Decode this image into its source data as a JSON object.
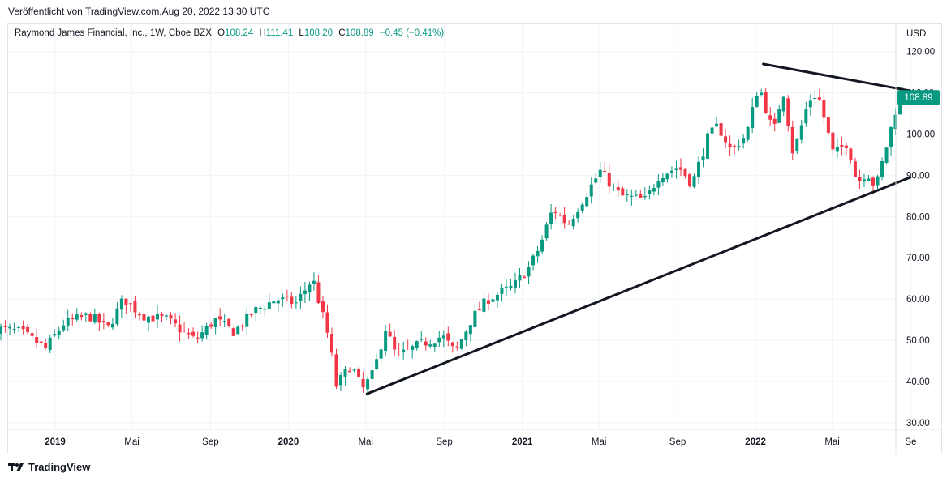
{
  "header": {
    "published": "Veröffentlicht von TradingView.com,Aug 20, 2022 13:30 UTC"
  },
  "legend": {
    "symbol": "Raymond James Financial, Inc., 1W, Cboe BZX",
    "o_label": "O",
    "o_value": "108.24",
    "h_label": "H",
    "h_value": "111.41",
    "l_label": "L",
    "l_value": "108.20",
    "c_label": "C",
    "c_value": "108.89",
    "change": "−0.45 (−0.41%)"
  },
  "footer": {
    "brand": "TradingView"
  },
  "colors": {
    "up": "#089981",
    "down": "#f23645",
    "trend": "#131722",
    "grid": "#f0f3fa",
    "price_tag": "#089981"
  },
  "chart_data": {
    "type": "candlestick",
    "currency": "USD",
    "interval": "1W",
    "ylim": [
      27,
      124
    ],
    "y_ticks": [
      "30.00",
      "40.00",
      "50.00",
      "60.00",
      "70.00",
      "80.00",
      "90.00",
      "100.00",
      "110.00",
      "120.00"
    ],
    "x_ticks": [
      "2019",
      "Mai",
      "Sep",
      "2020",
      "Mai",
      "Sep",
      "2021",
      "Mai",
      "Sep",
      "2022",
      "Mai",
      "Se"
    ],
    "x_tick_dates": [
      "2019-01-01",
      "2019-05-01",
      "2019-09-01",
      "2020-01-01",
      "2020-05-01",
      "2020-09-01",
      "2021-01-01",
      "2021-05-01",
      "2021-09-01",
      "2022-01-01",
      "2022-05-01",
      "2022-09-01"
    ],
    "last_price": "108.89",
    "trendlines": [
      {
        "name": "resistance",
        "from": [
          "2022-01-13",
          117
        ],
        "to": [
          "2022-08-31",
          110.5
        ]
      },
      {
        "name": "support",
        "from": [
          "2020-05-03",
          37
        ],
        "to": [
          "2022-08-31",
          89.5
        ]
      }
    ],
    "anchors": [
      [
        "2018-10-01",
        53
      ],
      [
        "2018-11-15",
        52
      ],
      [
        "2018-12-24",
        48
      ],
      [
        "2019-01-20",
        54
      ],
      [
        "2019-03-01",
        56
      ],
      [
        "2019-04-01",
        53
      ],
      [
        "2019-04-25",
        60
      ],
      [
        "2019-05-25",
        56
      ],
      [
        "2019-07-01",
        55
      ],
      [
        "2019-08-15",
        50
      ],
      [
        "2019-09-15",
        55
      ],
      [
        "2019-10-15",
        52
      ],
      [
        "2019-11-15",
        57
      ],
      [
        "2019-12-20",
        60
      ],
      [
        "2020-01-20",
        59
      ],
      [
        "2020-02-15",
        65
      ],
      [
        "2020-03-12",
        50
      ],
      [
        "2020-03-23",
        39
      ],
      [
        "2020-04-15",
        44
      ],
      [
        "2020-05-03",
        38
      ],
      [
        "2020-05-20",
        42
      ],
      [
        "2020-06-08",
        53
      ],
      [
        "2020-06-25",
        46
      ],
      [
        "2020-08-01",
        49
      ],
      [
        "2020-09-05",
        51
      ],
      [
        "2020-09-25",
        47
      ],
      [
        "2020-10-20",
        55
      ],
      [
        "2020-11-15",
        60
      ],
      [
        "2020-12-25",
        63
      ],
      [
        "2021-01-20",
        68
      ],
      [
        "2021-02-05",
        73
      ],
      [
        "2021-02-25",
        82
      ],
      [
        "2021-03-20",
        78
      ],
      [
        "2021-04-20",
        86
      ],
      [
        "2021-05-10",
        91
      ],
      [
        "2021-06-10",
        85
      ],
      [
        "2021-07-20",
        84
      ],
      [
        "2021-08-10",
        90
      ],
      [
        "2021-09-10",
        92
      ],
      [
        "2021-10-01",
        88
      ],
      [
        "2021-10-25",
        99
      ],
      [
        "2021-11-10",
        102
      ],
      [
        "2021-12-01",
        96
      ],
      [
        "2021-12-25",
        100
      ],
      [
        "2022-01-13",
        112
      ],
      [
        "2022-02-05",
        100
      ],
      [
        "2022-02-20",
        111
      ],
      [
        "2022-03-08",
        95
      ],
      [
        "2022-04-01",
        108
      ],
      [
        "2022-04-15",
        110
      ],
      [
        "2022-05-10",
        95
      ],
      [
        "2022-06-01",
        98
      ],
      [
        "2022-06-16",
        88
      ],
      [
        "2022-07-01",
        91
      ],
      [
        "2022-07-15",
        87
      ],
      [
        "2022-08-01",
        97
      ],
      [
        "2022-08-20",
        108.89
      ]
    ],
    "last_candle": {
      "date": "2022-08-19",
      "open": 108.24,
      "high": 111.41,
      "low": 108.2,
      "close": 108.89
    }
  }
}
